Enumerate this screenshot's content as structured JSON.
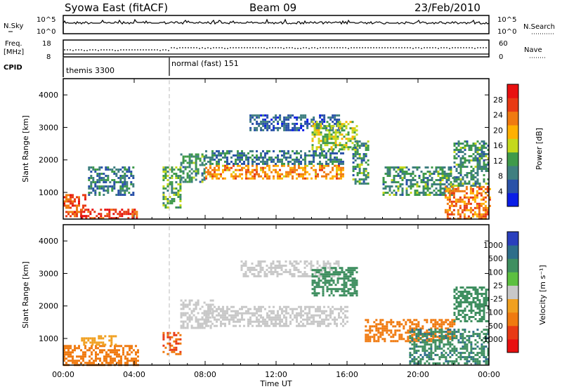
{
  "header": {
    "station": "Syowa East (fitACF)",
    "beam": "Beam 09",
    "date": "23/Feb/2010"
  },
  "top_panels": {
    "nsky_label": "N.Sky",
    "nsky_tick_high": "10^5",
    "nsky_tick_low": "10^0",
    "nsearch_label": "N.Search",
    "nsearch_tick_high": "10^5",
    "nsearch_tick_low": "10^0",
    "freq_label_1": "Freq.",
    "freq_label_2": "[MHz]",
    "freq_tick_high": "18",
    "freq_tick_low": "8",
    "nave_label": "Nave",
    "nave_tick_high": "60",
    "nave_tick_low": "0",
    "cpid_label": "CPID",
    "cpid_segments": [
      {
        "name": "themis 3300",
        "start_hour": 0,
        "end_hour": 6
      },
      {
        "name": "normal (fast) 151",
        "start_hour": 6,
        "end_hour": 24
      }
    ]
  },
  "chart_data": [
    {
      "type": "heatmap",
      "title": "",
      "xlabel": "Time UT",
      "ylabel": "Slant Range [km]",
      "xlim_hours": [
        0,
        24
      ],
      "ylim_km": [
        180,
        4500
      ],
      "x_ticks": [
        "00:00",
        "04:00",
        "08:00",
        "12:00",
        "16:00",
        "20:00",
        "00:00"
      ],
      "y_ticks": [
        1000,
        2000,
        3000,
        4000
      ],
      "colorbar": {
        "label": "Power [dB]",
        "ticks": [
          "4",
          "8",
          "12",
          "16",
          "20",
          "24",
          "28"
        ],
        "range": [
          0,
          30
        ],
        "colors": [
          "#0a1de6",
          "#2a52a8",
          "#3f7f80",
          "#3f9a4a",
          "#c4d81c",
          "#ffb000",
          "#f07a10",
          "#e83a14",
          "#e81010"
        ]
      },
      "echo_regions": [
        {
          "t0": 0.0,
          "t1": 1.2,
          "r0": 250,
          "r1": 950,
          "value": 24
        },
        {
          "t0": 1.0,
          "t1": 4.2,
          "r0": 200,
          "r1": 500,
          "value": 26
        },
        {
          "t0": 1.4,
          "t1": 4.0,
          "r0": 900,
          "r1": 1800,
          "value": 8
        },
        {
          "t0": 5.6,
          "t1": 6.6,
          "r0": 550,
          "r1": 1800,
          "value": 12
        },
        {
          "t0": 6.6,
          "t1": 8.0,
          "r0": 1300,
          "r1": 2200,
          "value": 10
        },
        {
          "t0": 8.0,
          "t1": 15.8,
          "r0": 1400,
          "r1": 1850,
          "value": 20
        },
        {
          "t0": 8.0,
          "t1": 15.8,
          "r0": 1850,
          "r1": 2300,
          "value": 8
        },
        {
          "t0": 10.5,
          "t1": 15.5,
          "r0": 2900,
          "r1": 3400,
          "value": 6
        },
        {
          "t0": 14.0,
          "t1": 16.6,
          "r0": 2300,
          "r1": 3200,
          "value": 14
        },
        {
          "t0": 16.3,
          "t1": 17.2,
          "r0": 1300,
          "r1": 2600,
          "value": 10
        },
        {
          "t0": 18.0,
          "t1": 22.0,
          "r0": 900,
          "r1": 1800,
          "value": 10
        },
        {
          "t0": 21.5,
          "t1": 24.0,
          "r0": 200,
          "r1": 1200,
          "value": 22
        },
        {
          "t0": 22.0,
          "t1": 24.0,
          "r0": 1200,
          "r1": 2600,
          "value": 10
        }
      ]
    },
    {
      "type": "heatmap",
      "title": "",
      "xlabel": "Time UT",
      "ylabel": "Slant Range [km]",
      "xlim_hours": [
        0,
        24
      ],
      "ylim_km": [
        180,
        4500
      ],
      "x_ticks": [
        "00:00",
        "04:00",
        "08:00",
        "12:00",
        "16:00",
        "20:00",
        "00:00"
      ],
      "y_ticks": [
        1000,
        2000,
        3000,
        4000
      ],
      "colorbar": {
        "label": "Velocity [m s⁻¹]",
        "ticks": [
          "1000",
          "500",
          "100",
          "25",
          "-25",
          "-100",
          "-500",
          "-1000"
        ],
        "colors": [
          "#2a3fbd",
          "#2e6e8a",
          "#3f8f60",
          "#5cc040",
          "#c8c8c8",
          "#f0a020",
          "#f07a10",
          "#e83a14",
          "#e81010"
        ]
      },
      "echo_regions": [
        {
          "t0": 0.0,
          "t1": 4.2,
          "r0": 200,
          "r1": 800,
          "value": -150
        },
        {
          "t0": 1.0,
          "t1": 3.0,
          "r0": 800,
          "r1": 1100,
          "value": -50
        },
        {
          "t0": 5.6,
          "t1": 6.6,
          "r0": 500,
          "r1": 1200,
          "value": -300
        },
        {
          "t0": 6.6,
          "t1": 8.5,
          "r0": 1300,
          "r1": 2200,
          "value": 0
        },
        {
          "t0": 8.0,
          "t1": 16.0,
          "r0": 1400,
          "r1": 2000,
          "value": 0
        },
        {
          "t0": 10.0,
          "t1": 15.5,
          "r0": 2900,
          "r1": 3400,
          "value": 0
        },
        {
          "t0": 14.0,
          "t1": 16.6,
          "r0": 2300,
          "r1": 3200,
          "value": 200
        },
        {
          "t0": 17.0,
          "t1": 22.0,
          "r0": 900,
          "r1": 1600,
          "value": -200
        },
        {
          "t0": 19.5,
          "t1": 24.0,
          "r0": 200,
          "r1": 1300,
          "value": 250
        },
        {
          "t0": 22.0,
          "t1": 24.0,
          "r0": 1500,
          "r1": 2600,
          "value": 80
        }
      ]
    }
  ]
}
